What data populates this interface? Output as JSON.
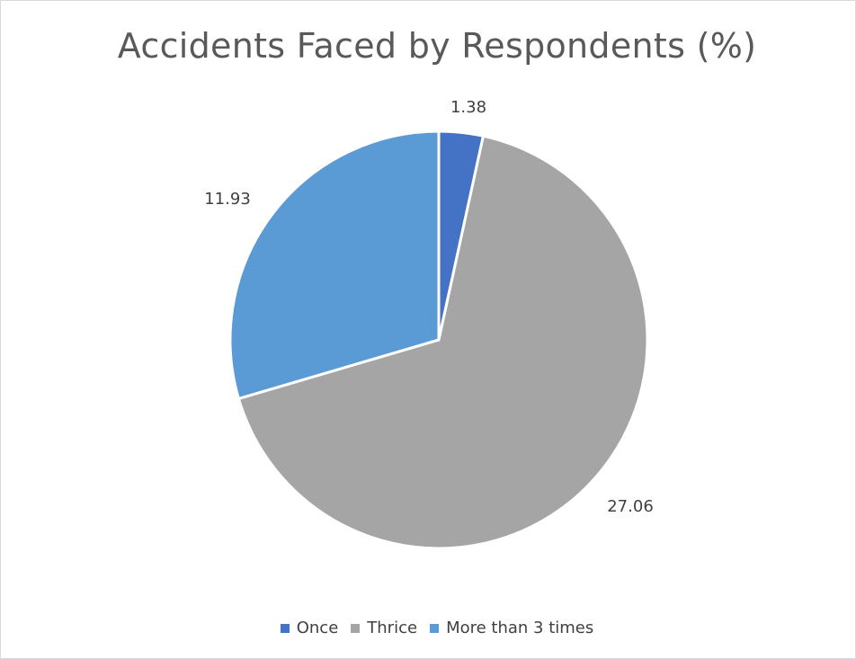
{
  "chart_data": {
    "type": "pie",
    "title": "Accidents Faced by Respondents (%)",
    "categories": [
      "Once",
      "Thrice",
      "More than 3 times"
    ],
    "values": [
      1.38,
      27.06,
      11.93
    ],
    "data_labels": [
      "1.38",
      "27.06",
      "11.93"
    ],
    "colors": [
      "#4472c4",
      "#a5a5a5",
      "#5b9bd5"
    ],
    "legend_position": "bottom",
    "start_angle_deg": 0,
    "direction": "clockwise"
  }
}
